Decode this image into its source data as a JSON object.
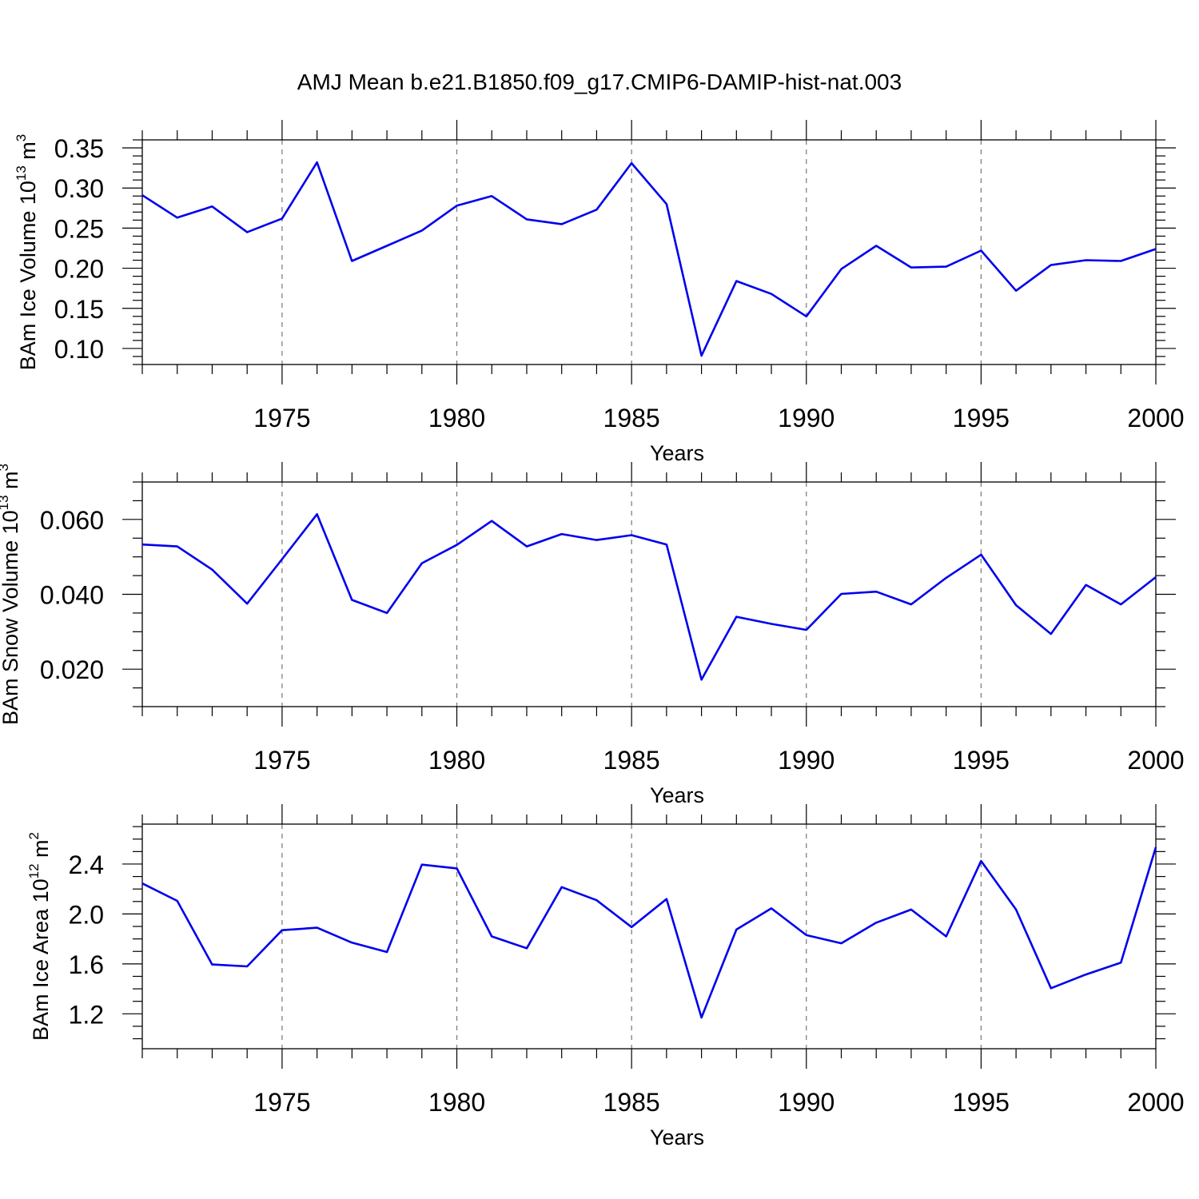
{
  "figure": {
    "title": "AMJ Mean b.e21.B1850.f09_g17.CMIP6-DAMIP-hist-nat.003"
  },
  "chart_data": [
    {
      "type": "line",
      "ylabel": {
        "text": "BAm Ice Volume 10",
        "sup": "13",
        "unit": " m",
        "unit_sup": "3"
      },
      "xlabel": "Years",
      "xlim": [
        1971,
        2000
      ],
      "ylim": [
        0.08,
        0.36
      ],
      "x_ticks": [
        1975,
        1980,
        1985,
        1990,
        1995,
        2000
      ],
      "y_ticks": [
        0.1,
        0.15,
        0.2,
        0.25,
        0.3,
        0.35
      ],
      "y_tick_labels": [
        "0.10",
        "0.15",
        "0.20",
        "0.25",
        "0.30",
        "0.35"
      ],
      "y_minor_step": 0.01,
      "grid": "dashed vertical at major x ticks",
      "line_color": "#0000ee",
      "x": [
        1971,
        1972,
        1973,
        1974,
        1975,
        1976,
        1977,
        1978,
        1979,
        1980,
        1981,
        1982,
        1983,
        1984,
        1985,
        1986,
        1987,
        1988,
        1989,
        1990,
        1991,
        1992,
        1993,
        1994,
        1995,
        1996,
        1997,
        1998,
        1999,
        2000
      ],
      "values": [
        0.291,
        0.263,
        0.277,
        0.245,
        0.262,
        0.332,
        0.209,
        0.228,
        0.247,
        0.278,
        0.29,
        0.261,
        0.255,
        0.273,
        0.331,
        0.28,
        0.091,
        0.184,
        0.168,
        0.14,
        0.199,
        0.228,
        0.201,
        0.202,
        0.222,
        0.172,
        0.204,
        0.21,
        0.209,
        0.224
      ]
    },
    {
      "type": "line",
      "ylabel": {
        "text": "BAm Snow Volume 10",
        "sup": "13",
        "unit": " m",
        "unit_sup": "3"
      },
      "xlabel": "Years",
      "xlim": [
        1971,
        2000
      ],
      "ylim": [
        0.01,
        0.07
      ],
      "x_ticks": [
        1975,
        1980,
        1985,
        1990,
        1995,
        2000
      ],
      "y_ticks": [
        0.02,
        0.04,
        0.06
      ],
      "y_tick_labels": [
        "0.020",
        "0.040",
        "0.060"
      ],
      "y_minor_step": 0.005,
      "grid": "dashed vertical at major x ticks",
      "line_color": "#0000ee",
      "x": [
        1971,
        1972,
        1973,
        1974,
        1975,
        1976,
        1977,
        1978,
        1979,
        1980,
        1981,
        1982,
        1983,
        1984,
        1985,
        1986,
        1987,
        1988,
        1989,
        1990,
        1991,
        1992,
        1993,
        1994,
        1995,
        1996,
        1997,
        1998,
        1999,
        2000
      ],
      "values": [
        0.0533,
        0.0528,
        0.0466,
        0.0375,
        0.0494,
        0.0614,
        0.0385,
        0.035,
        0.0483,
        0.0532,
        0.0596,
        0.0528,
        0.0561,
        0.0545,
        0.0558,
        0.0533,
        0.0172,
        0.034,
        0.0321,
        0.0305,
        0.0401,
        0.0407,
        0.0373,
        0.0444,
        0.0506,
        0.0371,
        0.0294,
        0.0425,
        0.0373,
        0.0446
      ]
    },
    {
      "type": "line",
      "ylabel": {
        "text": "BAm Ice Area 10",
        "sup": "12",
        "unit": " m",
        "unit_sup": "2"
      },
      "xlabel": "Years",
      "xlim": [
        1971,
        2000
      ],
      "ylim": [
        0.92,
        2.72
      ],
      "x_ticks": [
        1975,
        1980,
        1985,
        1990,
        1995,
        2000
      ],
      "y_ticks": [
        1.2,
        1.6,
        2.0,
        2.4
      ],
      "y_tick_labels": [
        "1.2",
        "1.6",
        "2.0",
        "2.4"
      ],
      "y_minor_step": 0.1,
      "grid": "dashed vertical at major x ticks",
      "line_color": "#0000ee",
      "x": [
        1971,
        1972,
        1973,
        1974,
        1975,
        1976,
        1977,
        1978,
        1979,
        1980,
        1981,
        1982,
        1983,
        1984,
        1985,
        1986,
        1987,
        1988,
        1989,
        1990,
        1991,
        1992,
        1993,
        1994,
        1995,
        1996,
        1997,
        1998,
        1999,
        2000
      ],
      "values": [
        2.245,
        2.105,
        1.595,
        1.58,
        1.87,
        1.89,
        1.77,
        1.695,
        2.395,
        2.365,
        1.82,
        1.725,
        2.215,
        2.11,
        1.895,
        2.12,
        1.17,
        1.875,
        2.045,
        1.83,
        1.765,
        1.93,
        2.035,
        1.82,
        2.425,
        2.035,
        1.405,
        1.515,
        1.61,
        2.535
      ]
    }
  ]
}
